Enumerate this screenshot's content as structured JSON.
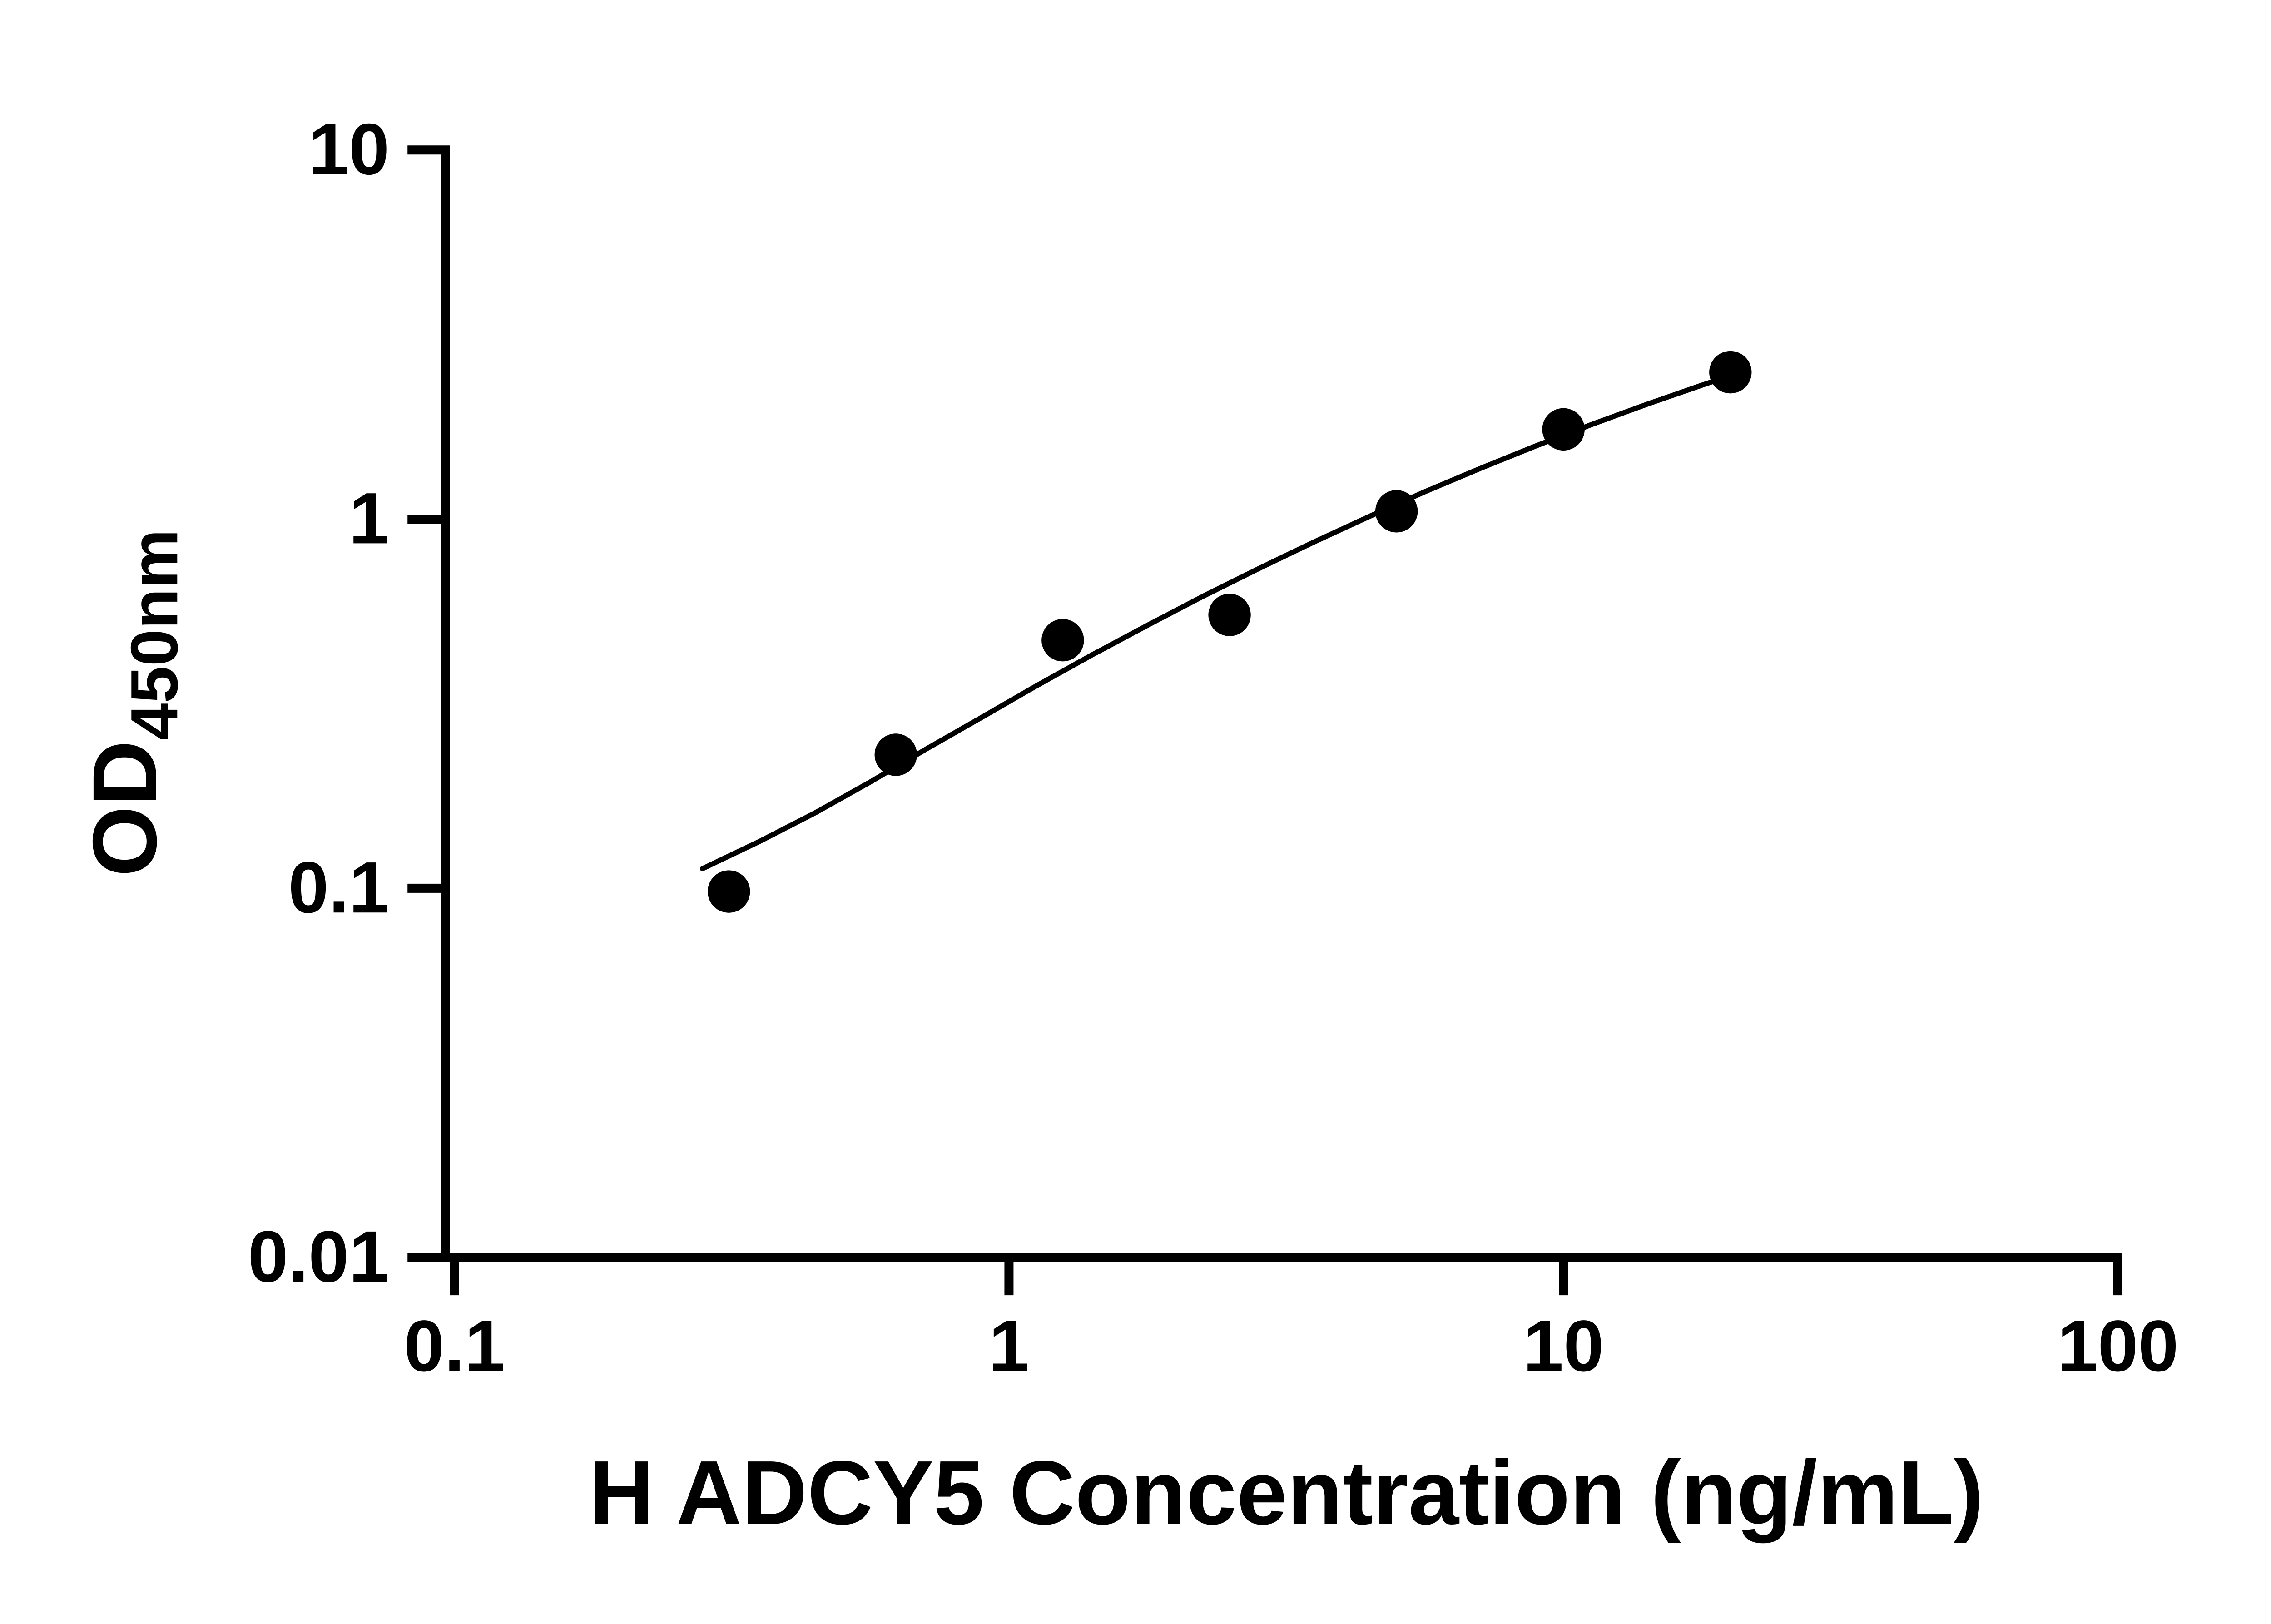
{
  "chart_data": {
    "type": "scatter",
    "title": "",
    "xlabel": "H ADCY5 Concentration (ng/mL)",
    "ylabel_main": "OD",
    "ylabel_sub": "450nm",
    "x_scale": "log",
    "y_scale": "log",
    "xlim": [
      0.1,
      100
    ],
    "ylim": [
      0.01,
      10
    ],
    "x_ticks": [
      0.1,
      1,
      10,
      100
    ],
    "x_tick_labels": [
      "0.1",
      "1",
      "10",
      "100"
    ],
    "y_ticks": [
      0.01,
      0.1,
      1,
      10
    ],
    "y_tick_labels": [
      "0.01",
      "0.1",
      "1",
      "10"
    ],
    "grid": false,
    "legend": "none",
    "background": "#ffffff",
    "marker_color": "#000000",
    "line_color": "#000000",
    "series": [
      {
        "name": "standards",
        "x": [
          0.3125,
          0.625,
          1.25,
          2.5,
          5,
          10,
          20
        ],
        "y": [
          0.098,
          0.23,
          0.47,
          0.55,
          1.05,
          1.75,
          2.5
        ]
      }
    ],
    "fit_curve": {
      "name": "standard-curve-fit",
      "x": [
        0.28,
        0.355,
        0.447,
        0.562,
        0.708,
        0.891,
        1.122,
        1.413,
        1.778,
        2.239,
        2.818,
        3.548,
        4.467,
        5.623,
        7.079,
        8.913,
        11.22,
        14.13,
        17.78,
        20.0
      ],
      "y": [
        0.113,
        0.134,
        0.16,
        0.194,
        0.238,
        0.29,
        0.354,
        0.429,
        0.516,
        0.618,
        0.734,
        0.867,
        1.017,
        1.186,
        1.372,
        1.578,
        1.803,
        2.046,
        2.308,
        2.448
      ]
    }
  }
}
